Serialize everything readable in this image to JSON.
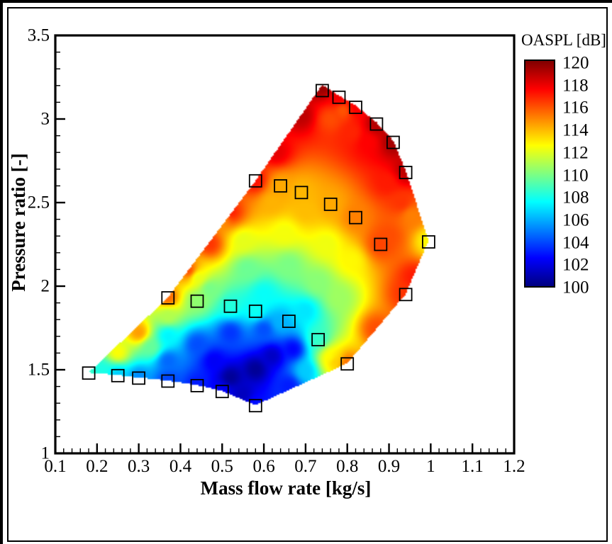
{
  "figure": {
    "background": "#ffffff",
    "frame_color": "#000000",
    "accent_marker_color": "#000000"
  },
  "chart_data": {
    "type": "filled-contour-with-scatter",
    "title": "",
    "xlabel": "Mass flow rate [kg/s]",
    "ylabel": "Pressure ratio [-]",
    "xlim": [
      0.1,
      1.2
    ],
    "ylim": [
      1,
      3.5
    ],
    "grid": false,
    "x_tick_values": [
      0.1,
      0.2,
      0.3,
      0.4,
      0.5,
      0.6,
      0.7,
      0.8,
      0.9,
      1.0,
      1.1,
      1.2
    ],
    "x_tick_labels": [
      "0.1",
      "0.2",
      "0.3",
      "0.4",
      "0.5",
      "0.6",
      "0.7",
      "0.8",
      "0.9",
      "1",
      "1.1",
      "1.2"
    ],
    "y_tick_values": [
      1,
      1.5,
      2,
      2.5,
      3,
      3.5
    ],
    "y_tick_labels": [
      "1",
      "1.5",
      "2",
      "2.5",
      "3",
      "3.5"
    ],
    "x_minor_step": 0.02,
    "y_minor_step": 0.1,
    "colorbar": {
      "title": "OASPL [dB]",
      "min": 100,
      "max": 120,
      "tick_labels": [
        "120",
        "118",
        "116",
        "114",
        "112",
        "110",
        "108",
        "106",
        "104",
        "102",
        "100"
      ],
      "colormap": "jet"
    },
    "operating_points": [
      [
        0.74,
        3.17
      ],
      [
        0.78,
        3.13
      ],
      [
        0.82,
        3.07
      ],
      [
        0.87,
        2.97
      ],
      [
        0.91,
        2.86
      ],
      [
        0.94,
        2.68
      ],
      [
        0.58,
        2.63
      ],
      [
        0.64,
        2.6
      ],
      [
        0.69,
        2.56
      ],
      [
        0.76,
        2.49
      ],
      [
        0.82,
        2.41
      ],
      [
        0.88,
        2.25
      ],
      [
        0.995,
        2.265
      ],
      [
        0.94,
        1.95
      ],
      [
        0.8,
        1.535
      ],
      [
        0.37,
        1.93
      ],
      [
        0.44,
        1.91
      ],
      [
        0.52,
        1.88
      ],
      [
        0.58,
        1.85
      ],
      [
        0.66,
        1.79
      ],
      [
        0.73,
        1.68
      ],
      [
        0.18,
        1.48
      ],
      [
        0.25,
        1.465
      ],
      [
        0.3,
        1.45
      ],
      [
        0.37,
        1.432
      ],
      [
        0.44,
        1.405
      ],
      [
        0.5,
        1.37
      ],
      [
        0.58,
        1.285
      ]
    ],
    "envelope": [
      [
        0.18,
        1.48
      ],
      [
        0.37,
        1.93
      ],
      [
        0.58,
        2.63
      ],
      [
        0.74,
        3.205
      ],
      [
        0.78,
        3.14
      ],
      [
        0.82,
        3.08
      ],
      [
        0.87,
        2.98
      ],
      [
        0.91,
        2.87
      ],
      [
        0.94,
        2.69
      ],
      [
        0.995,
        2.27
      ],
      [
        0.94,
        1.95
      ],
      [
        0.8,
        1.535
      ],
      [
        0.58,
        1.285
      ],
      [
        0.5,
        1.37
      ],
      [
        0.44,
        1.405
      ],
      [
        0.37,
        1.432
      ],
      [
        0.3,
        1.45
      ],
      [
        0.25,
        1.465
      ]
    ],
    "field_points": [
      [
        0.18,
        1.48,
        108.5
      ],
      [
        0.25,
        1.6,
        112.5
      ],
      [
        0.3,
        1.72,
        114.5
      ],
      [
        0.37,
        1.93,
        115.5
      ],
      [
        0.42,
        2.09,
        116.2
      ],
      [
        0.47,
        2.25,
        116.5
      ],
      [
        0.52,
        2.44,
        117.0
      ],
      [
        0.58,
        2.63,
        117.2
      ],
      [
        0.63,
        2.8,
        118.0
      ],
      [
        0.69,
        3.02,
        118.8
      ],
      [
        0.74,
        3.19,
        119.5
      ],
      [
        0.78,
        3.13,
        117.8
      ],
      [
        0.82,
        3.07,
        117.6
      ],
      [
        0.87,
        2.97,
        119.0
      ],
      [
        0.91,
        2.86,
        119.3
      ],
      [
        0.94,
        2.69,
        118.8
      ],
      [
        0.79,
        3.05,
        115.8
      ],
      [
        0.76,
        3.0,
        116.0
      ],
      [
        0.81,
        2.92,
        116.8
      ],
      [
        0.85,
        2.86,
        117.5
      ],
      [
        0.895,
        2.62,
        117.0
      ],
      [
        0.995,
        2.27,
        112.6
      ],
      [
        0.955,
        2.42,
        115.0
      ],
      [
        0.96,
        2.05,
        117.0
      ],
      [
        0.93,
        2.5,
        116.5
      ],
      [
        0.9,
        2.3,
        116.0
      ],
      [
        0.94,
        1.95,
        116.5
      ],
      [
        0.87,
        1.74,
        116.0
      ],
      [
        0.8,
        1.54,
        115.3
      ],
      [
        0.64,
        2.6,
        114.2
      ],
      [
        0.69,
        2.56,
        113.9
      ],
      [
        0.76,
        2.49,
        114.2
      ],
      [
        0.82,
        2.41,
        115.0
      ],
      [
        0.88,
        2.25,
        116.2
      ],
      [
        0.4,
        2.1,
        114.0
      ],
      [
        0.5,
        2.42,
        114.3
      ],
      [
        0.62,
        2.5,
        114.0
      ],
      [
        0.7,
        2.45,
        113.8
      ],
      [
        0.44,
        2.05,
        112.0
      ],
      [
        0.55,
        2.27,
        112.0
      ],
      [
        0.65,
        2.32,
        112.3
      ],
      [
        0.75,
        2.25,
        112.2
      ],
      [
        0.81,
        2.15,
        112.6
      ],
      [
        0.47,
        1.98,
        109.8
      ],
      [
        0.56,
        2.1,
        109.6
      ],
      [
        0.66,
        2.12,
        109.9
      ],
      [
        0.73,
        2.02,
        110.2
      ],
      [
        0.78,
        1.93,
        110.6
      ],
      [
        0.52,
        1.88,
        108.2
      ],
      [
        0.58,
        1.85,
        107.8
      ],
      [
        0.44,
        1.91,
        110.3
      ],
      [
        0.37,
        1.7,
        107.3
      ],
      [
        0.33,
        1.63,
        109.5
      ],
      [
        0.6,
        1.95,
        107.6
      ],
      [
        0.37,
        1.82,
        111.0
      ],
      [
        0.64,
        1.78,
        106.0
      ],
      [
        0.7,
        1.85,
        107.0
      ],
      [
        0.73,
        1.68,
        108.5
      ],
      [
        0.37,
        1.55,
        104.5
      ],
      [
        0.44,
        1.65,
        104.0
      ],
      [
        0.52,
        1.72,
        103.5
      ],
      [
        0.6,
        1.74,
        104.0
      ],
      [
        0.67,
        1.62,
        102.5
      ],
      [
        0.66,
        1.4,
        103.0
      ],
      [
        0.7,
        1.49,
        106.5
      ],
      [
        0.76,
        1.57,
        112.5
      ],
      [
        0.77,
        1.55,
        113.5
      ],
      [
        0.52,
        1.45,
        100.4
      ],
      [
        0.58,
        1.5,
        100.4
      ],
      [
        0.55,
        1.35,
        101.2
      ],
      [
        0.62,
        1.58,
        101.3
      ],
      [
        0.48,
        1.55,
        102.3
      ],
      [
        0.58,
        1.285,
        102.8
      ],
      [
        0.5,
        1.37,
        102.3
      ],
      [
        0.44,
        1.405,
        103.0
      ],
      [
        0.37,
        1.432,
        103.8
      ],
      [
        0.3,
        1.45,
        105.2
      ],
      [
        0.25,
        1.465,
        106.5
      ],
      [
        0.21,
        1.49,
        108.0
      ]
    ]
  }
}
